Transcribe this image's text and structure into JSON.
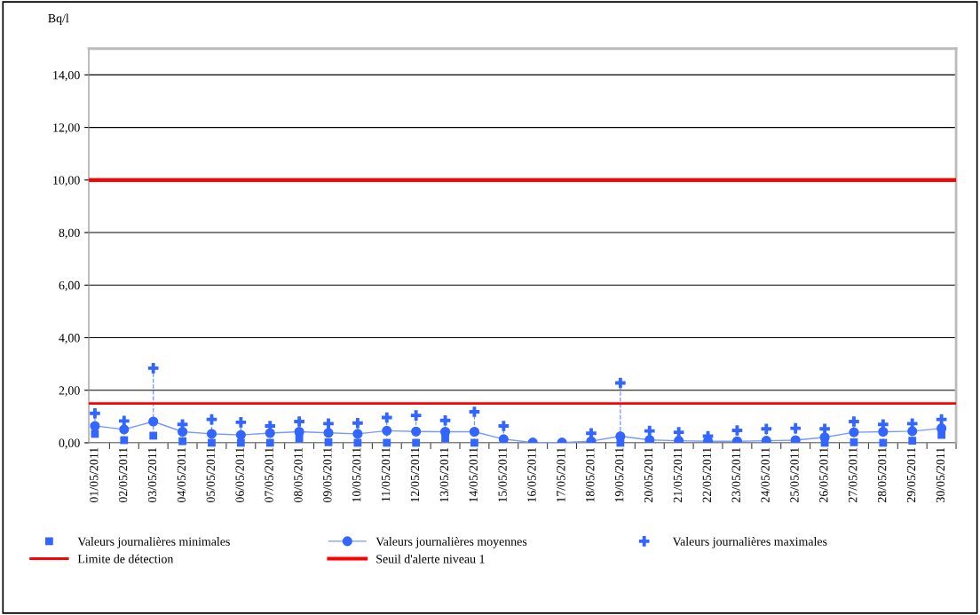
{
  "chart_data": {
    "type": "line",
    "ylabel": "Bq/l",
    "categories": [
      "01/05/2011",
      "02/05/2011",
      "03/05/2011",
      "04/05/2011",
      "05/05/2011",
      "06/05/2011",
      "07/05/2011",
      "08/05/2011",
      "09/05/2011",
      "10/05/2011",
      "11/05/2011",
      "12/05/2011",
      "13/05/2011",
      "14/05/2011",
      "15/05/2011",
      "16/05/2011",
      "17/05/2011",
      "18/05/2011",
      "19/05/2011",
      "20/05/2011",
      "21/05/2011",
      "22/05/2011",
      "23/05/2011",
      "24/05/2011",
      "25/05/2011",
      "26/05/2011",
      "27/05/2011",
      "28/05/2011",
      "29/05/2011",
      "30/05/2011"
    ],
    "series": [
      {
        "name": "Valeurs journalières minimales",
        "type": "scatter",
        "marker": "square",
        "color": "#3366ff",
        "values": [
          0.34,
          0.1,
          0.27,
          0.06,
          0,
          0,
          0,
          0.16,
          0.02,
          0,
          0,
          0,
          0.17,
          0,
          null,
          null,
          null,
          null,
          0,
          null,
          null,
          null,
          null,
          null,
          null,
          0,
          0.02,
          0,
          0.08,
          0.3
        ]
      },
      {
        "name": "Valeurs journalières moyennes",
        "marker": "circle",
        "color": "#3366ff",
        "values": [
          0.64,
          0.51,
          0.81,
          0.42,
          0.34,
          0.3,
          0.37,
          0.42,
          0.38,
          0.34,
          0.46,
          0.43,
          0.42,
          0.42,
          0.14,
          0.01,
          0.01,
          0.06,
          0.25,
          0.11,
          0.08,
          0.06,
          0.06,
          0.08,
          0.1,
          0.21,
          0.4,
          0.42,
          0.44,
          0.55
        ]
      },
      {
        "name": "Valeurs journalières maximales",
        "type": "scatter",
        "marker": "cross",
        "color": "#3366ff",
        "values": [
          1.12,
          0.83,
          2.84,
          0.7,
          0.89,
          0.78,
          0.64,
          0.81,
          0.73,
          0.75,
          0.96,
          1.04,
          0.85,
          1.18,
          0.64,
          null,
          null,
          0.36,
          2.28,
          0.45,
          0.4,
          0.25,
          0.47,
          0.53,
          0.55,
          0.53,
          0.81,
          0.7,
          0.73,
          0.89
        ]
      }
    ],
    "ref_lines": [
      {
        "axis": "y",
        "value": 1.5,
        "label": "Limite de détection",
        "color": "#ff0000",
        "line_style": "solid"
      },
      {
        "axis": "y",
        "value": 10,
        "label": "Seuil d'alerte niveau 1",
        "color": "#ff0000",
        "line_style": "solid"
      }
    ],
    "ylim": [
      0,
      15
    ],
    "yticks": [
      {
        "value": 0,
        "label": "0,00"
      },
      {
        "value": 2,
        "label": "2,00"
      },
      {
        "value": 4,
        "label": "4,00"
      },
      {
        "value": 6,
        "label": "6,00"
      },
      {
        "value": 8,
        "label": "8,00"
      },
      {
        "value": 10,
        "label": "10,00"
      },
      {
        "value": 12,
        "label": "12,00"
      },
      {
        "value": 14,
        "label": "14,00"
      }
    ],
    "grid": "y",
    "legend": "bottom"
  }
}
